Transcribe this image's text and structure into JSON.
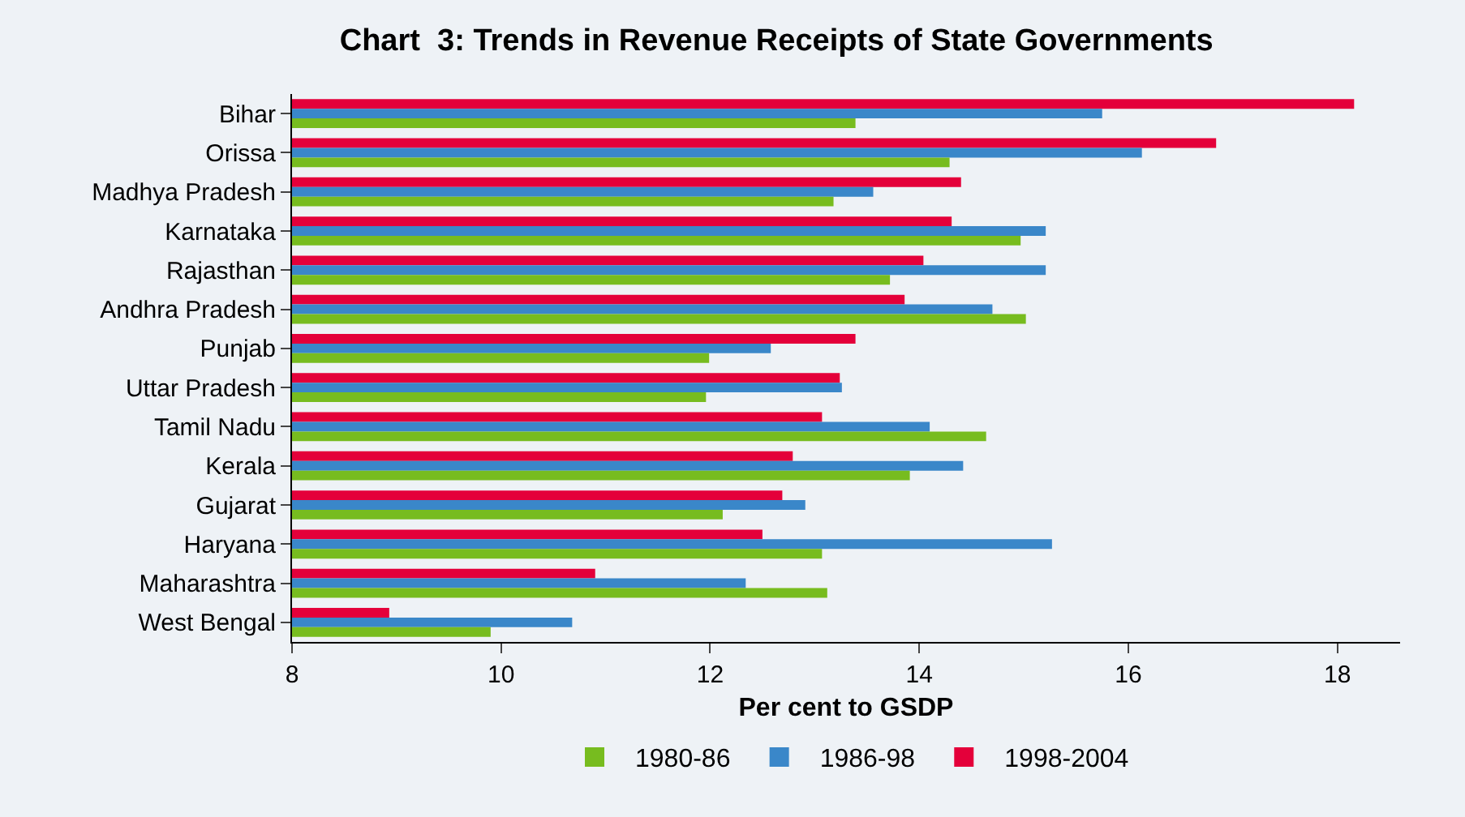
{
  "chart_data": {
    "type": "bar",
    "orientation": "horizontal",
    "title": "Chart  3: Trends in Revenue Receipts of State Governments",
    "xlabel": "Per cent to GSDP",
    "categories": [
      "Bihar",
      "Orissa",
      "Madhya Pradesh",
      "Karnataka",
      "Rajasthan",
      "Andhra Pradesh",
      "Punjab",
      "Uttar Pradesh",
      "Tamil Nadu",
      "Kerala",
      "Gujarat",
      "Haryana",
      "Maharashtra",
      "West Bengal"
    ],
    "series": [
      {
        "name": "1980-86",
        "color": "#77bc1f",
        "values": [
          13.39,
          14.29,
          13.18,
          14.97,
          13.72,
          15.02,
          11.99,
          11.96,
          14.64,
          13.91,
          12.12,
          13.07,
          13.12,
          9.9
        ]
      },
      {
        "name": "1986-98",
        "color": "#3a87c9",
        "values": [
          15.75,
          16.13,
          13.56,
          15.21,
          15.21,
          14.7,
          12.58,
          13.26,
          14.1,
          14.42,
          12.91,
          15.27,
          12.34,
          10.68
        ]
      },
      {
        "name": "1998-2004",
        "color": "#e4003a",
        "values": [
          18.16,
          16.84,
          14.4,
          14.31,
          14.04,
          13.86,
          13.39,
          13.24,
          13.07,
          12.79,
          12.69,
          12.5,
          10.9,
          8.93
        ]
      }
    ],
    "xlim": [
      8,
      18.6
    ],
    "xticks": [
      8,
      10,
      12,
      14,
      16,
      18
    ],
    "grid": false,
    "legend": "bottom"
  }
}
